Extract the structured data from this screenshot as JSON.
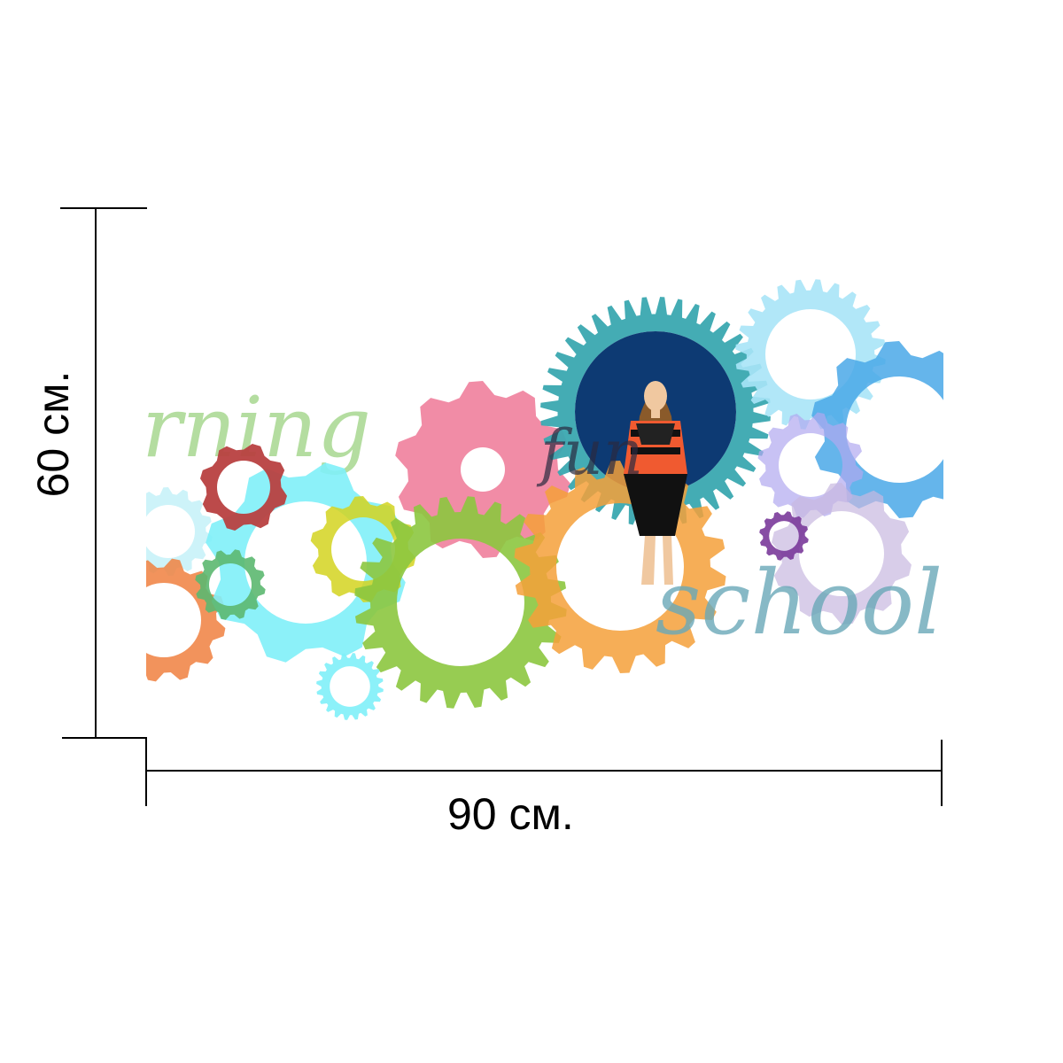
{
  "dimensions": {
    "width_label": "90 см.",
    "height_label": "60 см."
  },
  "artwork": {
    "lettering": [
      "rning",
      "school",
      "fun"
    ],
    "gear_colors": [
      "#f07f9c",
      "#3aa8b0",
      "#a8e4f7",
      "#4aa8e8",
      "#5cb870",
      "#8cc63f",
      "#f4a03a",
      "#d4d420",
      "#b84040",
      "#c8b8e0",
      "#b0a8f0",
      "#80f0f8",
      "#f08040",
      "#7a3a9a",
      "#c0f0f8"
    ],
    "figure_colors": {
      "circle": "#0d3a73",
      "shirt": "#f05a30",
      "pants": "#111111",
      "hair": "#8a5a2a",
      "skin": "#f0c8a0"
    }
  }
}
